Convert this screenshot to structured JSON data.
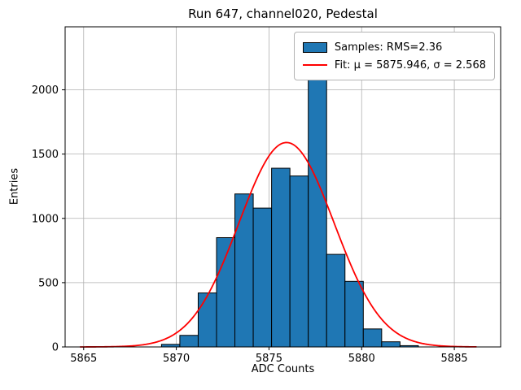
{
  "chart_data": {
    "type": "bar",
    "subtype": "histogram-with-gaussian-fit",
    "title": "Run 647, channel020, Pedestal",
    "xlabel": "ADC Counts",
    "ylabel": "Entries",
    "xlim": [
      5864,
      5887.5
    ],
    "ylim": [
      0,
      2490
    ],
    "xticks": [
      5865,
      5870,
      5875,
      5880,
      5885
    ],
    "yticks": [
      0,
      500,
      1000,
      1500,
      2000
    ],
    "grid": true,
    "grid_color": "#b0b0b0",
    "bar_color": "#1f77b4",
    "bar_edge_color": "#000000",
    "bin_start": 5869.2,
    "bin_width": 0.99,
    "counts": [
      20,
      90,
      420,
      850,
      1190,
      1080,
      1390,
      1330,
      2140,
      720,
      510,
      140,
      40,
      10
    ],
    "fit": {
      "mu": 5875.946,
      "sigma": 2.568,
      "amplitude": 1590,
      "color": "#ff0000",
      "x_start": 5864.8,
      "x_end": 5886.2
    },
    "legend": {
      "position": "upper right",
      "entries": [
        {
          "type": "patch",
          "color": "#1f77b4",
          "label": "Samples: RMS=2.36"
        },
        {
          "type": "line",
          "color": "#ff0000",
          "label": "Fit: μ = 5875.946, σ = 2.568"
        }
      ]
    }
  }
}
